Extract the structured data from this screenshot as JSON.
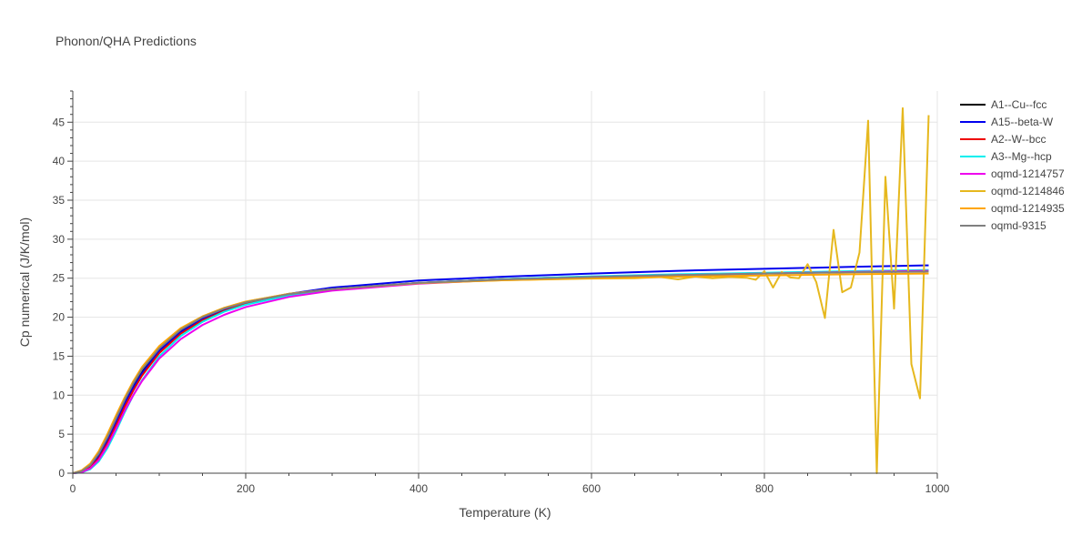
{
  "chart_data": {
    "type": "line",
    "title": "Phonon/QHA Predictions",
    "xlabel": "Temperature (K)",
    "ylabel": "Cp numerical (J/K/mol)",
    "xlim": [
      0,
      1000
    ],
    "ylim": [
      0,
      49
    ],
    "xticks": [
      0,
      200,
      400,
      600,
      800,
      1000
    ],
    "yticks": [
      0,
      5,
      10,
      15,
      20,
      25,
      30,
      35,
      40,
      45
    ],
    "grid": true,
    "legend_position": "right",
    "series": [
      {
        "name": "A1--Cu--fcc",
        "color": "#000000",
        "x": [
          0,
          10,
          20,
          30,
          40,
          50,
          60,
          70,
          80,
          100,
          125,
          150,
          175,
          200,
          250,
          300,
          400,
          500,
          600,
          700,
          800,
          900,
          990
        ],
        "y": [
          0,
          0.2,
          0.9,
          2.3,
          4.4,
          6.8,
          9.2,
          11.3,
          13.1,
          15.9,
          18.3,
          19.9,
          21.0,
          21.8,
          22.9,
          23.6,
          24.4,
          24.9,
          25.2,
          25.45,
          25.65,
          25.8,
          25.9
        ]
      },
      {
        "name": "A15--beta-W",
        "color": "#0000ee",
        "x": [
          0,
          10,
          20,
          30,
          40,
          50,
          60,
          70,
          80,
          100,
          125,
          150,
          175,
          200,
          250,
          300,
          400,
          500,
          600,
          700,
          800,
          900,
          990
        ],
        "y": [
          0,
          0.15,
          0.8,
          2.1,
          4.1,
          6.5,
          8.9,
          11.0,
          12.8,
          15.7,
          18.1,
          19.8,
          21.0,
          21.9,
          23.0,
          23.8,
          24.7,
          25.2,
          25.6,
          25.95,
          26.2,
          26.45,
          26.65
        ]
      },
      {
        "name": "A2--W--bcc",
        "color": "#ee0000",
        "x": [
          0,
          10,
          20,
          30,
          40,
          50,
          60,
          70,
          80,
          100,
          125,
          150,
          175,
          200,
          250,
          300,
          400,
          500,
          600,
          700,
          800,
          900,
          990
        ],
        "y": [
          0,
          0.12,
          0.7,
          1.9,
          3.8,
          6.1,
          8.5,
          10.6,
          12.5,
          15.4,
          17.9,
          19.6,
          20.8,
          21.7,
          22.8,
          23.5,
          24.4,
          24.9,
          25.2,
          25.45,
          25.65,
          25.85,
          26.0
        ]
      },
      {
        "name": "A3--Mg--hcp",
        "color": "#00eeee",
        "x": [
          0,
          10,
          20,
          30,
          40,
          50,
          60,
          70,
          80,
          100,
          125,
          150,
          175,
          200,
          250,
          300,
          400,
          500,
          600,
          700,
          800,
          900,
          990
        ],
        "y": [
          0,
          0.08,
          0.5,
          1.5,
          3.2,
          5.4,
          7.8,
          10.0,
          11.9,
          15.0,
          17.6,
          19.4,
          20.7,
          21.6,
          22.8,
          23.5,
          24.4,
          24.9,
          25.25,
          25.5,
          25.7,
          25.9,
          26.05
        ]
      },
      {
        "name": "oqmd-1214757",
        "color": "#ee00ee",
        "x": [
          0,
          10,
          20,
          30,
          40,
          50,
          60,
          70,
          80,
          100,
          125,
          150,
          175,
          200,
          250,
          300,
          400,
          500,
          600,
          700,
          800,
          900,
          990
        ],
        "y": [
          0,
          0.1,
          0.6,
          1.7,
          3.5,
          5.7,
          8.0,
          10.0,
          11.8,
          14.7,
          17.2,
          19.0,
          20.3,
          21.3,
          22.6,
          23.4,
          24.3,
          24.8,
          25.15,
          25.4,
          25.6,
          25.8,
          25.95
        ]
      },
      {
        "name": "oqmd-1214846",
        "color": "#e6b81e",
        "x": [
          0,
          10,
          20,
          30,
          40,
          50,
          60,
          70,
          80,
          100,
          125,
          150,
          175,
          200,
          250,
          300,
          400,
          500,
          600,
          650,
          680,
          700,
          720,
          740,
          760,
          780,
          790,
          800,
          810,
          820,
          830,
          840,
          850,
          860,
          870,
          880,
          890,
          900,
          910,
          920,
          930,
          940,
          950,
          960,
          970,
          980,
          990
        ],
        "y": [
          0,
          0.3,
          1.1,
          2.6,
          4.8,
          7.2,
          9.6,
          11.7,
          13.5,
          16.2,
          18.6,
          20.1,
          21.2,
          22.0,
          23.0,
          23.6,
          24.4,
          24.75,
          24.95,
          25.0,
          25.15,
          24.85,
          25.2,
          25.0,
          25.15,
          25.05,
          24.8,
          25.9,
          23.8,
          25.8,
          25.1,
          25.0,
          26.8,
          24.5,
          19.9,
          31.2,
          23.2,
          23.8,
          28.3,
          45.2,
          0,
          38.0,
          21.1,
          46.8,
          14.0,
          9.6,
          45.9
        ]
      },
      {
        "name": "oqmd-1214935",
        "color": "#ffa500",
        "x": [
          0,
          10,
          20,
          30,
          40,
          50,
          60,
          70,
          80,
          100,
          125,
          150,
          175,
          200,
          250,
          300,
          400,
          500,
          600,
          700,
          800,
          900,
          990
        ],
        "y": [
          0,
          0.35,
          1.2,
          2.8,
          5.0,
          7.4,
          9.7,
          11.8,
          13.6,
          16.3,
          18.6,
          20.1,
          21.2,
          22.0,
          23.0,
          23.6,
          24.35,
          24.75,
          25.0,
          25.2,
          25.35,
          25.5,
          25.6
        ]
      },
      {
        "name": "oqmd-9315",
        "color": "#808080",
        "x": [
          0,
          10,
          20,
          30,
          40,
          50,
          60,
          70,
          80,
          100,
          125,
          150,
          175,
          200,
          250,
          300,
          400,
          500,
          600,
          700,
          800,
          900,
          990
        ],
        "y": [
          0,
          0.25,
          1.0,
          2.5,
          4.6,
          7.0,
          9.4,
          11.5,
          13.3,
          16.0,
          18.4,
          20.0,
          21.1,
          21.9,
          22.95,
          23.6,
          24.4,
          24.85,
          25.15,
          25.4,
          25.6,
          25.75,
          25.85
        ]
      }
    ]
  }
}
